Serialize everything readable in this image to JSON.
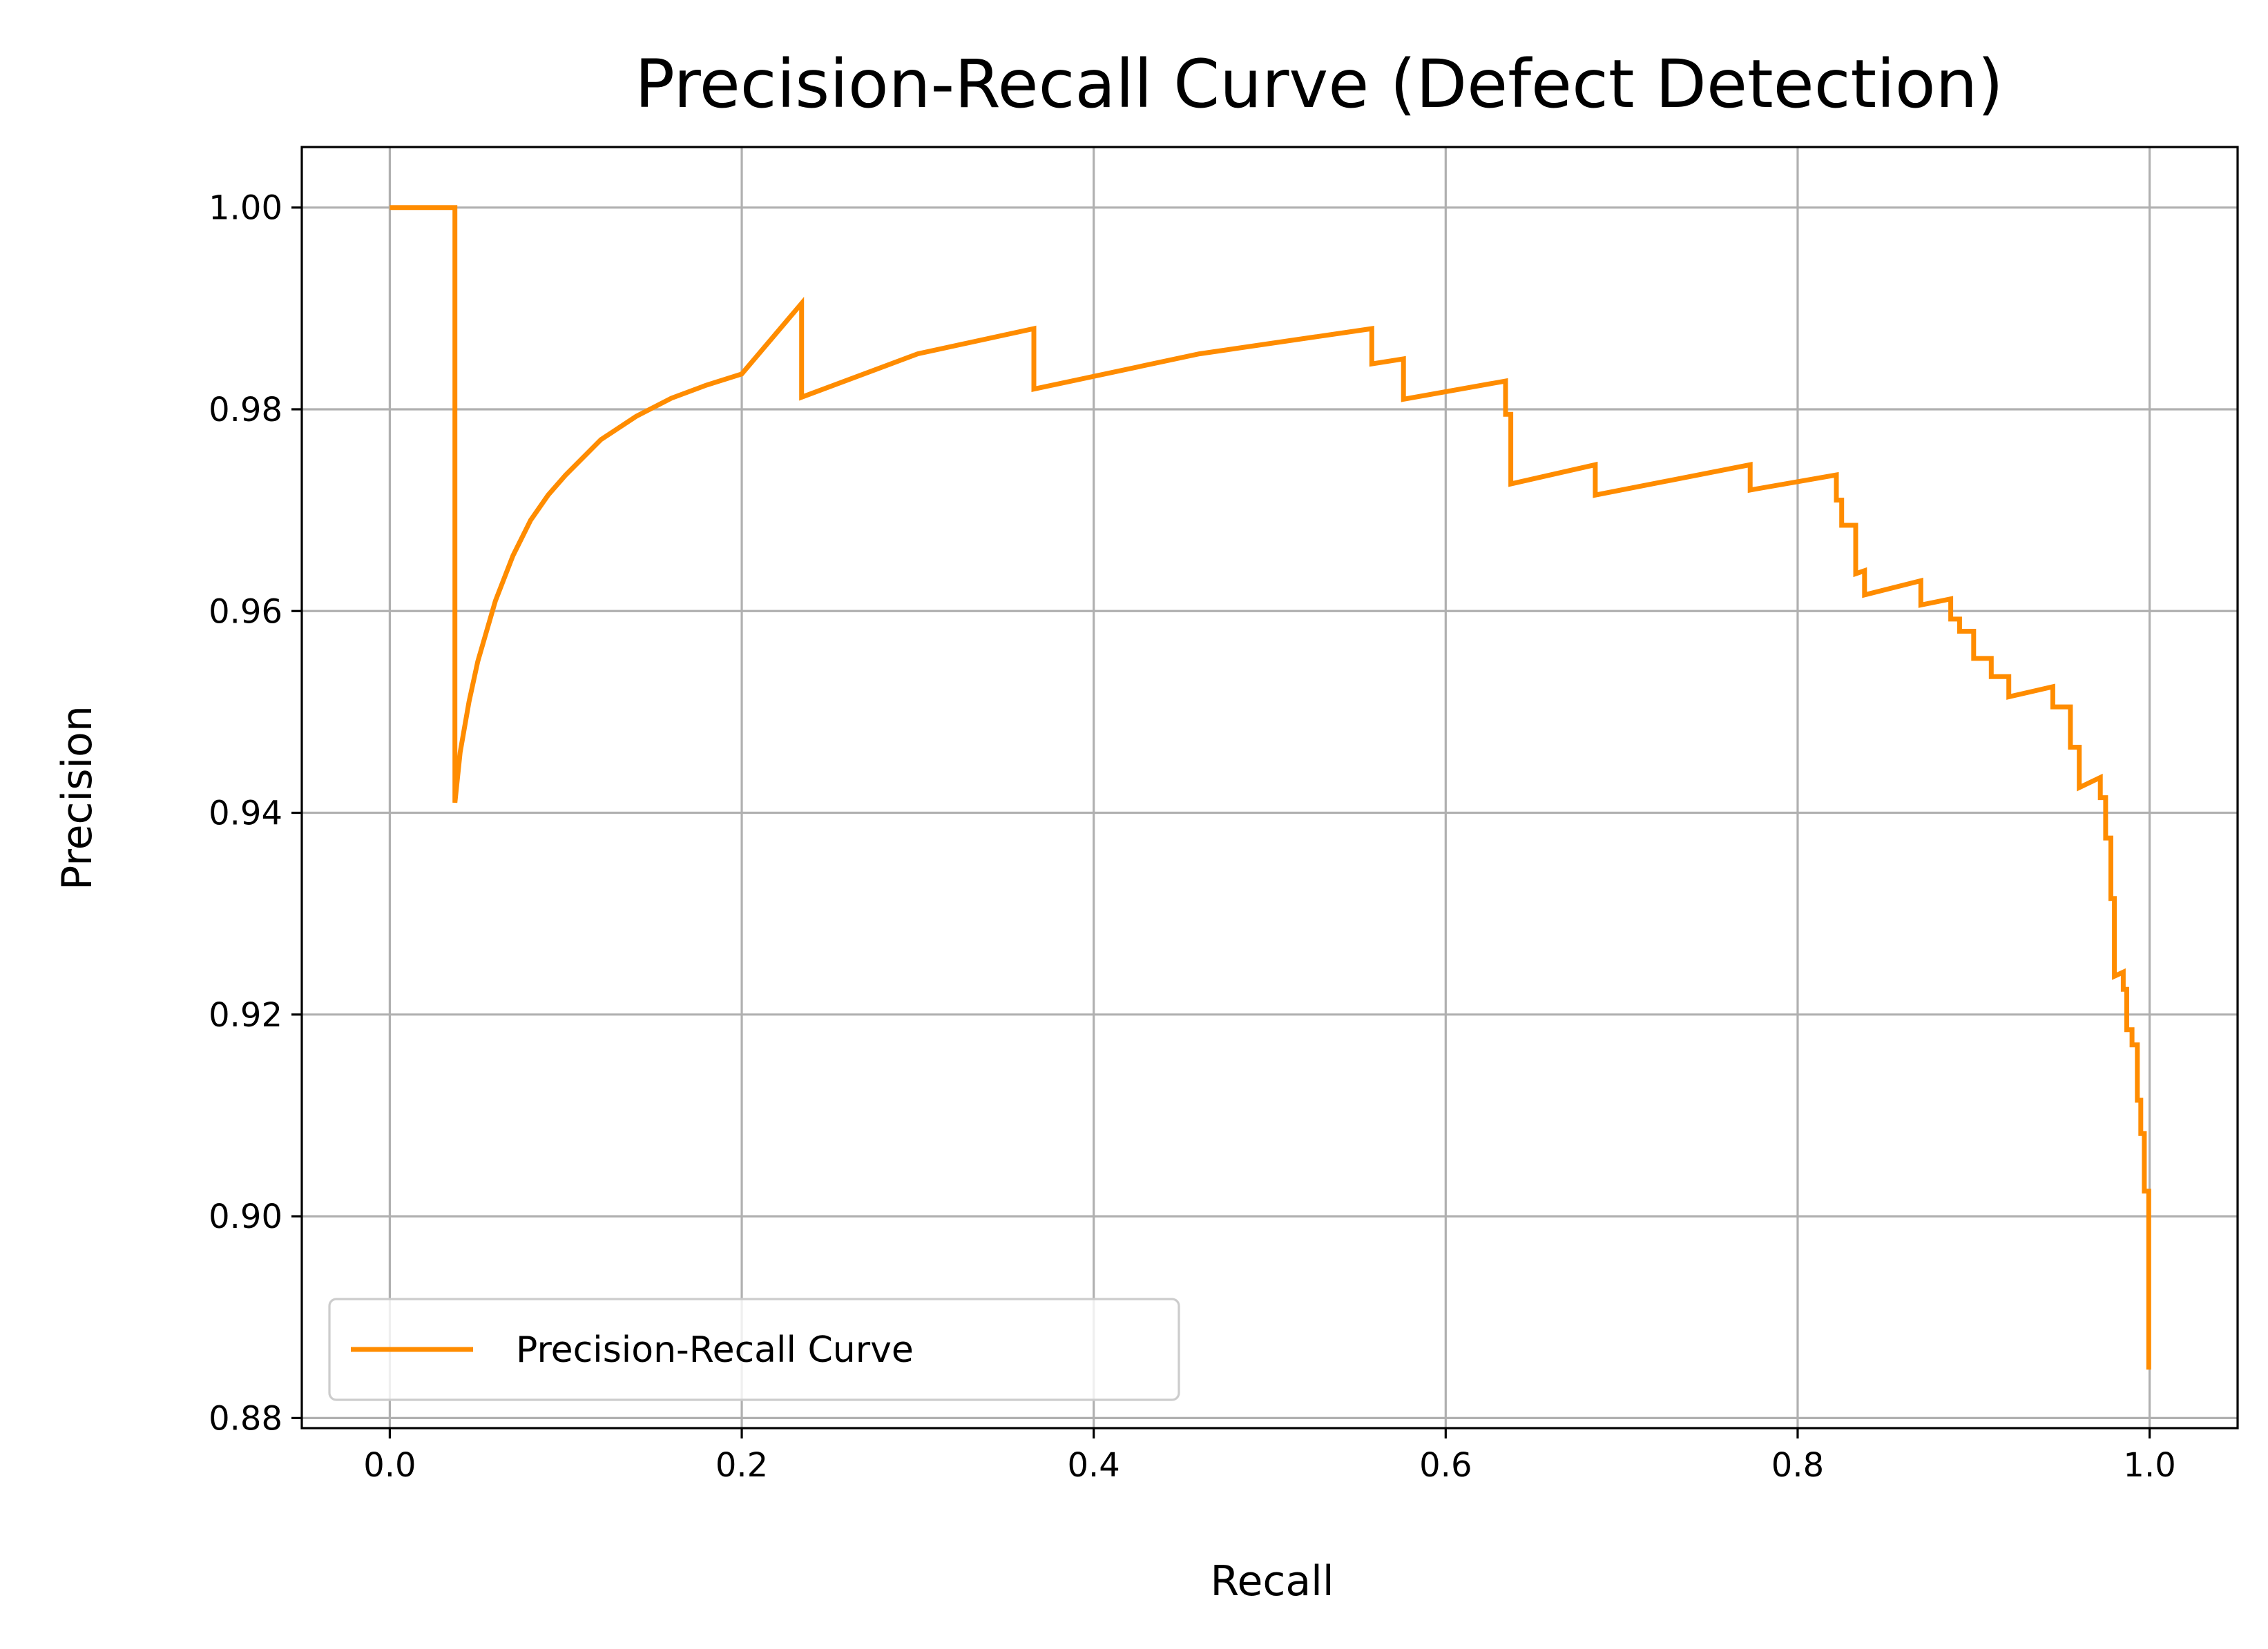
{
  "chart_data": {
    "type": "line",
    "title": "Precision-Recall Curve (Defect Detection)",
    "xlabel": "Recall",
    "ylabel": "Precision",
    "xlim": [
      -0.05,
      1.05
    ],
    "ylim": [
      0.879,
      1.006
    ],
    "xticks": [
      0.0,
      0.2,
      0.4,
      0.6,
      0.8,
      1.0
    ],
    "xtick_labels": [
      "0.0",
      "0.2",
      "0.4",
      "0.6",
      "0.8",
      "1.0"
    ],
    "yticks": [
      0.88,
      0.9,
      0.92,
      0.94,
      0.96,
      0.98,
      1.0
    ],
    "ytick_labels": [
      "0.88",
      "0.90",
      "0.92",
      "0.94",
      "0.96",
      "0.98",
      "1.00"
    ],
    "grid": true,
    "legend_position": "lower-left",
    "series": [
      {
        "name": "Precision-Recall Curve",
        "color": "#ff8c00",
        "x": [
          0.0,
          0.037,
          0.037,
          0.04,
          0.045,
          0.05,
          0.06,
          0.07,
          0.08,
          0.09,
          0.1,
          0.12,
          0.14,
          0.16,
          0.18,
          0.2,
          0.234,
          0.234,
          0.3,
          0.366,
          0.366,
          0.46,
          0.558,
          0.558,
          0.576,
          0.576,
          0.634,
          0.634,
          0.637,
          0.637,
          0.685,
          0.685,
          0.773,
          0.773,
          0.822,
          0.822,
          0.825,
          0.825,
          0.833,
          0.833,
          0.838,
          0.838,
          0.87,
          0.87,
          0.887,
          0.887,
          0.892,
          0.892,
          0.9,
          0.9,
          0.91,
          0.91,
          0.92,
          0.92,
          0.945,
          0.945,
          0.955,
          0.955,
          0.96,
          0.96,
          0.972,
          0.972,
          0.975,
          0.975,
          0.978,
          0.978,
          0.98,
          0.98,
          0.985,
          0.985,
          0.987,
          0.987,
          0.99,
          0.99,
          0.993,
          0.993,
          0.995,
          0.995,
          0.997,
          0.997,
          0.9995,
          0.9995,
          0.9995
        ],
        "y": [
          1.0,
          1.0,
          0.941,
          0.946,
          0.951,
          0.955,
          0.961,
          0.9655,
          0.969,
          0.9715,
          0.9735,
          0.977,
          0.9793,
          0.9811,
          0.9824,
          0.9835,
          0.9905,
          0.9812,
          0.9855,
          0.988,
          0.982,
          0.9855,
          0.988,
          0.9845,
          0.985,
          0.981,
          0.9828,
          0.9795,
          0.9795,
          0.9726,
          0.9745,
          0.9715,
          0.9745,
          0.972,
          0.9735,
          0.971,
          0.971,
          0.9685,
          0.9685,
          0.9637,
          0.964,
          0.9616,
          0.963,
          0.9606,
          0.9612,
          0.9592,
          0.9592,
          0.958,
          0.958,
          0.9553,
          0.9553,
          0.9535,
          0.9535,
          0.9515,
          0.9525,
          0.9505,
          0.9505,
          0.9465,
          0.9465,
          0.9425,
          0.9435,
          0.9415,
          0.9415,
          0.9375,
          0.9375,
          0.9315,
          0.9315,
          0.9238,
          0.9242,
          0.9225,
          0.9225,
          0.9185,
          0.9185,
          0.917,
          0.917,
          0.9115,
          0.9115,
          0.9082,
          0.9082,
          0.9025,
          0.9025,
          0.899,
          0.8848
        ]
      }
    ]
  }
}
